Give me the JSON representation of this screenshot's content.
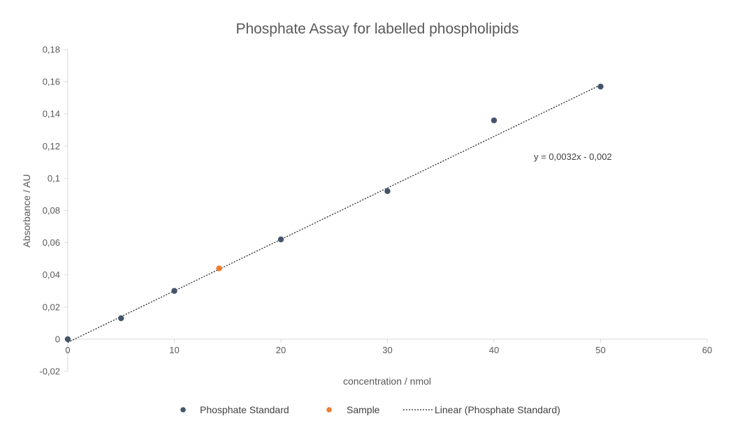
{
  "chart_data": {
    "type": "scatter",
    "title": "Phosphate Assay for labelled phospholipids",
    "xlabel": "concentration / nmol",
    "ylabel": "Absorbance  / AU",
    "xlim": [
      0,
      60
    ],
    "ylim": [
      -0.02,
      0.18
    ],
    "x_ticks": [
      0,
      10,
      20,
      30,
      40,
      50,
      60
    ],
    "x_tick_labels": [
      "0",
      "10",
      "20",
      "30",
      "40",
      "50",
      "60"
    ],
    "y_ticks": [
      -0.02,
      0,
      0.02,
      0.04,
      0.06,
      0.08,
      0.1,
      0.12,
      0.14,
      0.16,
      0.18
    ],
    "y_tick_labels": [
      "-0,02",
      "0",
      "0,02",
      "0,04",
      "0,06",
      "0,08",
      "0,1",
      "0,12",
      "0,14",
      "0,16",
      "0,18"
    ],
    "grid": false,
    "legend_position": "bottom",
    "series": [
      {
        "name": "Phosphate Standard",
        "color": "#44546a",
        "points": [
          {
            "x": 0,
            "y": 0
          },
          {
            "x": 5,
            "y": 0.013
          },
          {
            "x": 10,
            "y": 0.03
          },
          {
            "x": 20,
            "y": 0.062
          },
          {
            "x": 30,
            "y": 0.092
          },
          {
            "x": 40,
            "y": 0.136
          },
          {
            "x": 50,
            "y": 0.157
          }
        ]
      },
      {
        "name": "Sample",
        "color": "#ed7d31",
        "points": [
          {
            "x": 14.2,
            "y": 0.044
          }
        ]
      }
    ],
    "trendline": {
      "name": "Linear (Phosphate Standard)",
      "slope": 0.0032,
      "intercept": -0.002,
      "x_range": [
        0,
        50
      ],
      "color": "#262626",
      "equation_label": "y = 0,0032x - 0,002"
    }
  }
}
